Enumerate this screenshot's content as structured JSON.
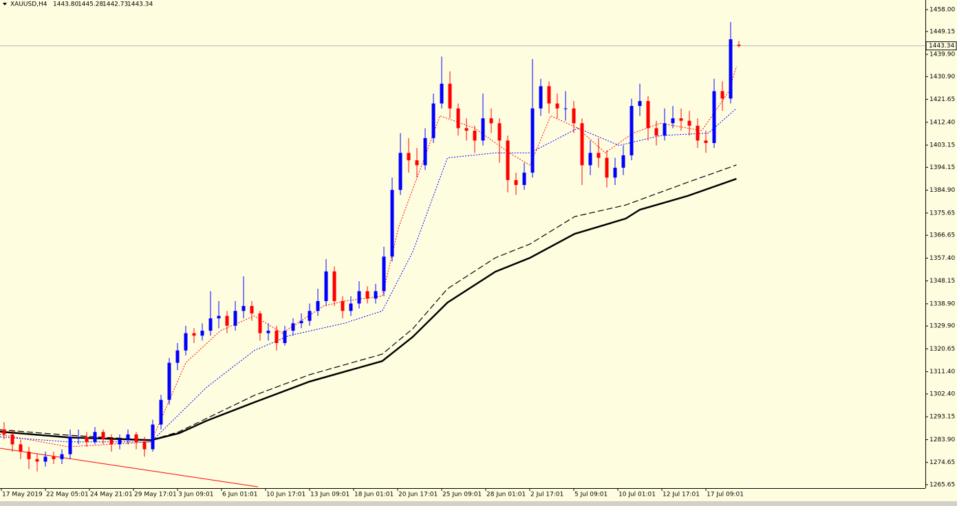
{
  "chart_data": {
    "type": "candlestick",
    "header": {
      "symbol": "XAUUSD,H4",
      "open": "1443.80",
      "high": "1445.28",
      "low": "1442.73",
      "close": "1443.34"
    },
    "up_color": "#0000ff",
    "down_color": "#ff0000",
    "ylim": [
      1264.26,
      1461.9
    ],
    "yticks": [
      {
        "value": 1458.0,
        "label": "1458.00"
      },
      {
        "value": 1449.15,
        "label": "1449.15"
      },
      {
        "value": 1439.9,
        "label": "1439.90"
      },
      {
        "value": 1430.9,
        "label": "1430.90"
      },
      {
        "value": 1421.65,
        "label": "1421.65"
      },
      {
        "value": 1412.4,
        "label": "1412.40"
      },
      {
        "value": 1403.15,
        "label": "1403.15"
      },
      {
        "value": 1394.15,
        "label": "1394.15"
      },
      {
        "value": 1384.9,
        "label": "1384.90"
      },
      {
        "value": 1375.65,
        "label": "1375.65"
      },
      {
        "value": 1366.65,
        "label": "1366.65"
      },
      {
        "value": 1357.4,
        "label": "1357.40"
      },
      {
        "value": 1348.15,
        "label": "1348.15"
      },
      {
        "value": 1338.9,
        "label": "1338.90"
      },
      {
        "value": 1329.9,
        "label": "1329.90"
      },
      {
        "value": 1320.65,
        "label": "1320.65"
      },
      {
        "value": 1311.4,
        "label": "1311.40"
      },
      {
        "value": 1302.4,
        "label": "1302.40"
      },
      {
        "value": 1293.15,
        "label": "1293.15"
      },
      {
        "value": 1283.9,
        "label": "1283.90"
      },
      {
        "value": 1274.65,
        "label": "1274.65"
      },
      {
        "value": 1265.65,
        "label": "1265.65"
      }
    ],
    "last_price": {
      "value": 1443.34,
      "label": "1443.34"
    },
    "time_labels": [
      "17 May 2019",
      "22 May 05:01",
      "24 May 21:01",
      "29 May 17:01",
      "3 Jun 09:01",
      "6 Jun 01:01",
      "10 Jun 17:01",
      "13 Jun 09:01",
      "18 Jun 01:01",
      "20 Jun 17:01",
      "25 Jun 09:01",
      "28 Jun 01:01",
      "2 Jul 17:01",
      "5 Jul 09:01",
      "10 Jul 01:01",
      "12 Jul 17:01",
      "17 Jul 09:01"
    ],
    "candles": [
      [
        1288,
        1291,
        1284,
        1286
      ],
      [
        1286,
        1288,
        1279,
        1282
      ],
      [
        1282,
        1284,
        1276,
        1279
      ],
      [
        1279,
        1281,
        1272,
        1276
      ],
      [
        1276,
        1278,
        1271,
        1275
      ],
      [
        1275,
        1279,
        1273,
        1277
      ],
      [
        1277,
        1279,
        1274,
        1276
      ],
      [
        1276,
        1280,
        1274,
        1278
      ],
      [
        1278,
        1288,
        1276,
        1285
      ],
      [
        1285,
        1288,
        1282,
        1285
      ],
      [
        1285,
        1287,
        1281,
        1283
      ],
      [
        1283,
        1289,
        1282,
        1287
      ],
      [
        1287,
        1288,
        1282,
        1284
      ],
      [
        1284,
        1286,
        1279,
        1282
      ],
      [
        1282,
        1286,
        1280,
        1284
      ],
      [
        1284,
        1288,
        1282,
        1286
      ],
      [
        1286,
        1287,
        1280,
        1283
      ],
      [
        1283,
        1285,
        1277,
        1280
      ],
      [
        1280,
        1292,
        1279,
        1290
      ],
      [
        1290,
        1302,
        1288,
        1300
      ],
      [
        1300,
        1317,
        1298,
        1315
      ],
      [
        1315,
        1323,
        1312,
        1320
      ],
      [
        1320,
        1330,
        1318,
        1327
      ],
      [
        1327,
        1329,
        1323,
        1326
      ],
      [
        1326,
        1331,
        1324,
        1328
      ],
      [
        1328,
        1344,
        1326,
        1333
      ],
      [
        1333,
        1340,
        1329,
        1334
      ],
      [
        1334,
        1336,
        1327,
        1330
      ],
      [
        1330,
        1340,
        1328,
        1336
      ],
      [
        1336,
        1350,
        1333,
        1338
      ],
      [
        1338,
        1340,
        1332,
        1335
      ],
      [
        1335,
        1336,
        1324,
        1327
      ],
      [
        1327,
        1331,
        1324,
        1328
      ],
      [
        1328,
        1330,
        1320,
        1323
      ],
      [
        1323,
        1330,
        1322,
        1328
      ],
      [
        1328,
        1333,
        1326,
        1331
      ],
      [
        1331,
        1335,
        1329,
        1332
      ],
      [
        1332,
        1339,
        1330,
        1336
      ],
      [
        1336,
        1345,
        1334,
        1340
      ],
      [
        1340,
        1357,
        1338,
        1352
      ],
      [
        1352,
        1354,
        1338,
        1340
      ],
      [
        1340,
        1342,
        1333,
        1336
      ],
      [
        1336,
        1342,
        1334,
        1339
      ],
      [
        1339,
        1348,
        1337,
        1344
      ],
      [
        1344,
        1346,
        1339,
        1341
      ],
      [
        1341,
        1347,
        1339,
        1344
      ],
      [
        1344,
        1362,
        1342,
        1358
      ],
      [
        1358,
        1390,
        1356,
        1385
      ],
      [
        1385,
        1408,
        1383,
        1400
      ],
      [
        1400,
        1406,
        1392,
        1397
      ],
      [
        1397,
        1402,
        1390,
        1395
      ],
      [
        1395,
        1410,
        1393,
        1406
      ],
      [
        1406,
        1424,
        1404,
        1420
      ],
      [
        1420,
        1439,
        1418,
        1428
      ],
      [
        1428,
        1433,
        1414,
        1418
      ],
      [
        1418,
        1420,
        1407,
        1410
      ],
      [
        1410,
        1414,
        1405,
        1409
      ],
      [
        1409,
        1411,
        1400,
        1405
      ],
      [
        1405,
        1424,
        1403,
        1414
      ],
      [
        1414,
        1418,
        1408,
        1412
      ],
      [
        1412,
        1414,
        1396,
        1405
      ],
      [
        1405,
        1407,
        1384,
        1389
      ],
      [
        1389,
        1392,
        1383,
        1387
      ],
      [
        1387,
        1396,
        1385,
        1392
      ],
      [
        1392,
        1438,
        1390,
        1418
      ],
      [
        1418,
        1430,
        1415,
        1427
      ],
      [
        1427,
        1429,
        1416,
        1420
      ],
      [
        1420,
        1424,
        1414,
        1418
      ],
      [
        1418,
        1425,
        1413,
        1418
      ],
      [
        1418,
        1421,
        1408,
        1412
      ],
      [
        1412,
        1414,
        1387,
        1395
      ],
      [
        1395,
        1405,
        1391,
        1400
      ],
      [
        1400,
        1406,
        1394,
        1398
      ],
      [
        1398,
        1401,
        1386,
        1390
      ],
      [
        1390,
        1398,
        1387,
        1394
      ],
      [
        1394,
        1403,
        1391,
        1399
      ],
      [
        1399,
        1422,
        1397,
        1419
      ],
      [
        1419,
        1428,
        1415,
        1421
      ],
      [
        1421,
        1423,
        1405,
        1410
      ],
      [
        1410,
        1413,
        1403,
        1407
      ],
      [
        1407,
        1418,
        1405,
        1412
      ],
      [
        1412,
        1419,
        1410,
        1414
      ],
      [
        1414,
        1418,
        1409,
        1413
      ],
      [
        1413,
        1417,
        1407,
        1411
      ],
      [
        1411,
        1414,
        1402,
        1405
      ],
      [
        1405,
        1409,
        1400,
        1404
      ],
      [
        1404,
        1430,
        1402,
        1425
      ],
      [
        1425,
        1429,
        1417,
        1422
      ],
      [
        1422,
        1453,
        1420,
        1446
      ],
      [
        1443.8,
        1445.28,
        1442.73,
        1443.34
      ]
    ],
    "series": [
      {
        "color": "#000000",
        "dash": "solid",
        "width": 2.5,
        "x": [
          -0.5,
          7.8,
          17.8,
          21.2,
          24.5,
          30.3,
          37,
          45.8,
          49.5,
          53.7,
          59.5,
          63.7,
          69.1,
          75.3,
          77,
          82.8,
          88.7
        ],
        "values": [
          1287.1,
          1284.8,
          1283.7,
          1286.5,
          1291.5,
          1299.0,
          1307.4,
          1315.7,
          1325.5,
          1339.4,
          1351.9,
          1357.5,
          1367.2,
          1373.4,
          1377.0,
          1382.6,
          1389.5
        ]
      },
      {
        "color": "#000000",
        "dash": "dashed",
        "width": 1.2,
        "x": [
          -0.5,
          7.8,
          17.8,
          21.2,
          30.3,
          37,
          45.8,
          49.5,
          53.7,
          59.5,
          63.7,
          69.1,
          75.3,
          82.8,
          88.7
        ],
        "values": [
          1287.9,
          1285.7,
          1283.7,
          1287.1,
          1301.8,
          1310.2,
          1318.5,
          1328.8,
          1345.0,
          1357.5,
          1363.1,
          1374.2,
          1378.9,
          1388.1,
          1395.1
        ]
      },
      {
        "color": "#ff0000",
        "dash": "dotted",
        "width": 1,
        "x": [
          -0.5,
          7.8,
          17.8,
          22,
          26.2,
          30.3,
          33.7,
          38.7,
          41.2,
          45.8,
          47.8,
          52.8,
          57,
          61.2,
          63.7,
          66.2,
          69.5,
          72.8,
          76.2,
          79.5,
          84.5,
          87.8,
          88.7
        ],
        "values": [
          1286,
          1281,
          1283,
          1315,
          1328,
          1334,
          1327,
          1338,
          1340,
          1342,
          1370,
          1415,
          1410,
          1400,
          1395,
          1415,
          1410,
          1400,
          1408,
          1412,
          1409,
          1425,
          1435
        ]
      },
      {
        "color": "#0000ff",
        "dash": "dotted",
        "width": 1,
        "x": [
          -0.5,
          7.8,
          17.8,
          24.5,
          30.3,
          34.5,
          41.2,
          45.8,
          49.5,
          53.7,
          59.5,
          63.7,
          69.5,
          74.5,
          79.5,
          85.3,
          88.7
        ],
        "values": [
          1285,
          1283,
          1283,
          1305,
          1320,
          1326,
          1331,
          1336,
          1360,
          1398,
          1400,
          1400,
          1410,
          1403,
          1407,
          1408,
          1418
        ]
      }
    ],
    "trendline": {
      "color": "#ff0000",
      "x": [
        -0.5,
        30.75
      ],
      "values": [
        1280.4,
        1264.8
      ]
    }
  }
}
